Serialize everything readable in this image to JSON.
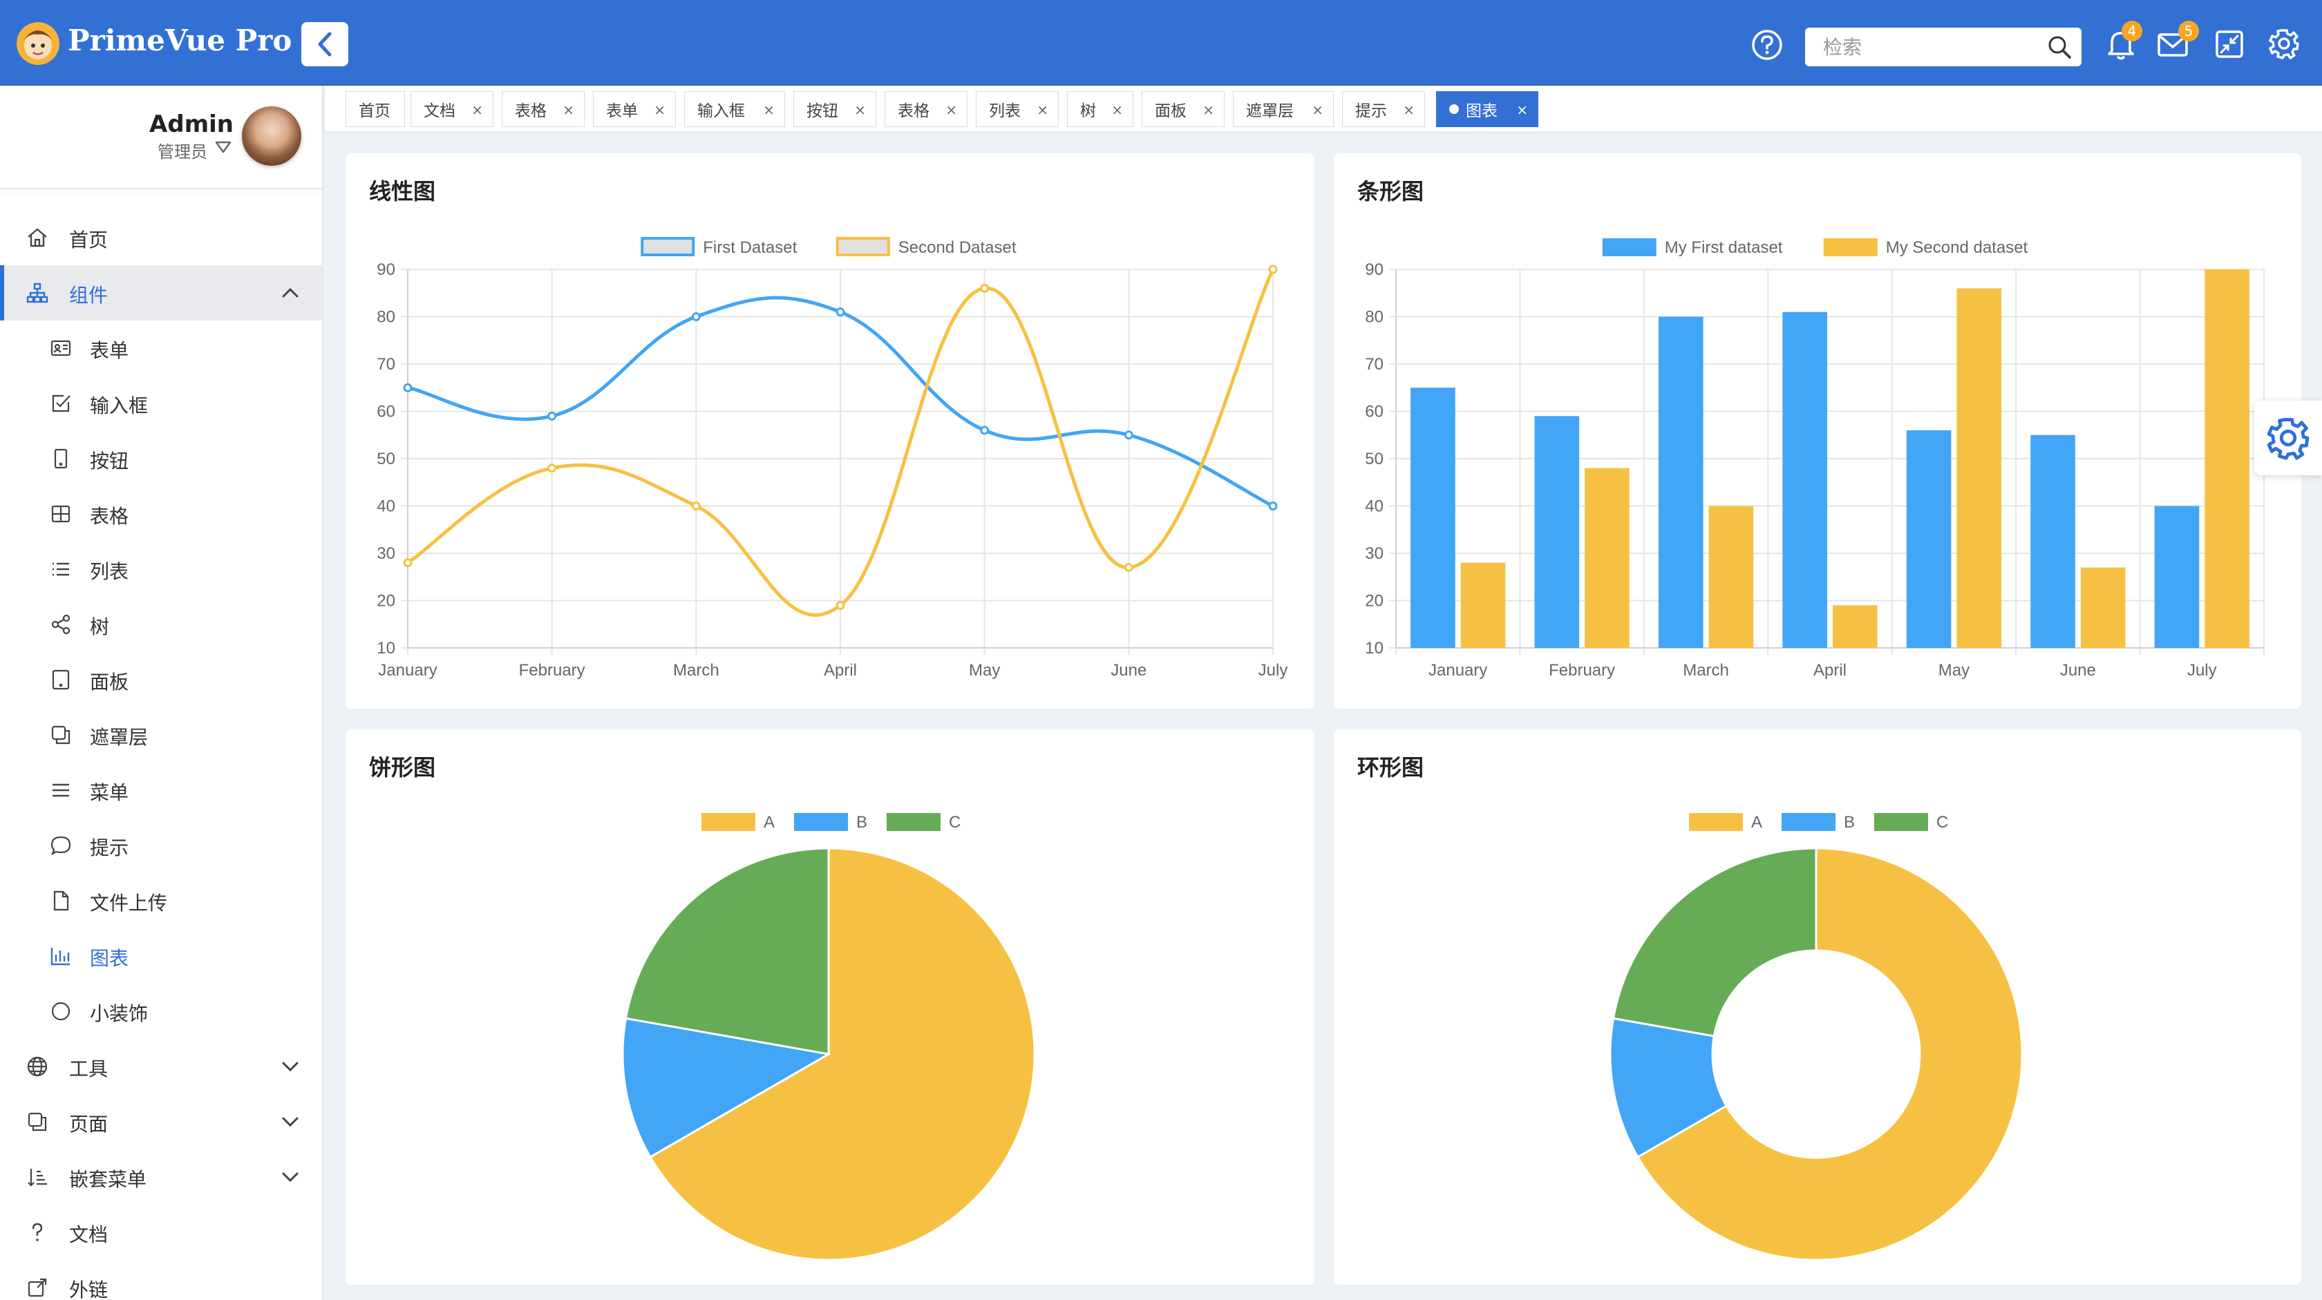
{
  "app": {
    "title": "PrimeVue Pro"
  },
  "header": {
    "search_placeholder": "检索",
    "notifications_count": "4",
    "messages_count": "5"
  },
  "user": {
    "name": "Admin",
    "role": "管理员"
  },
  "sidebar": {
    "items": [
      {
        "label": "首页",
        "icon": "home-icon",
        "level": 0
      },
      {
        "label": "组件",
        "icon": "sitemap-icon",
        "level": 0,
        "active": true,
        "expanded": true
      },
      {
        "label": "表单",
        "icon": "id-card-icon",
        "level": 1
      },
      {
        "label": "输入框",
        "icon": "check-square-icon",
        "level": 1
      },
      {
        "label": "按钮",
        "icon": "mobile-icon",
        "level": 1
      },
      {
        "label": "表格",
        "icon": "table-icon",
        "level": 1
      },
      {
        "label": "列表",
        "icon": "list-icon",
        "level": 1
      },
      {
        "label": "树",
        "icon": "share-alt-icon",
        "level": 1
      },
      {
        "label": "面板",
        "icon": "tablet-icon",
        "level": 1
      },
      {
        "label": "遮罩层",
        "icon": "clone-icon",
        "level": 1
      },
      {
        "label": "菜单",
        "icon": "bars-icon",
        "level": 1
      },
      {
        "label": "提示",
        "icon": "comment-icon",
        "level": 1
      },
      {
        "label": "文件上传",
        "icon": "file-icon",
        "level": 1
      },
      {
        "label": "图表",
        "icon": "chart-bar-icon",
        "level": 1,
        "current": true
      },
      {
        "label": "小装饰",
        "icon": "circle-icon",
        "level": 1
      },
      {
        "label": "工具",
        "icon": "globe-icon",
        "level": 0,
        "expandable": true
      },
      {
        "label": "页面",
        "icon": "copy-icon",
        "level": 0,
        "expandable": true
      },
      {
        "label": "嵌套菜单",
        "icon": "sort-amount-icon",
        "level": 0,
        "expandable": true
      },
      {
        "label": "文档",
        "icon": "question-icon",
        "level": 0
      },
      {
        "label": "外链",
        "icon": "external-link-icon",
        "level": 0
      }
    ]
  },
  "tabs": [
    {
      "label": "首页",
      "closable": false
    },
    {
      "label": "文档",
      "closable": true
    },
    {
      "label": "表格",
      "closable": true
    },
    {
      "label": "表单",
      "closable": true
    },
    {
      "label": "输入框",
      "closable": true
    },
    {
      "label": "按钮",
      "closable": true
    },
    {
      "label": "表格",
      "closable": true
    },
    {
      "label": "列表",
      "closable": true
    },
    {
      "label": "树",
      "closable": true
    },
    {
      "label": "面板",
      "closable": true
    },
    {
      "label": "遮罩层",
      "closable": true
    },
    {
      "label": "提示",
      "closable": true
    },
    {
      "label": "图表",
      "closable": true,
      "active": true
    }
  ],
  "tab_close_glyph": "×",
  "colors": {
    "primary": "#3370d4",
    "blue": "#42a5f5",
    "yellow": "#f6c142",
    "green": "#66ab55"
  },
  "chart_data": [
    {
      "title": "线性图",
      "type": "line",
      "categories": [
        "January",
        "February",
        "March",
        "April",
        "May",
        "June",
        "July"
      ],
      "series": [
        {
          "name": "First Dataset",
          "values": [
            65,
            59,
            80,
            81,
            56,
            55,
            40
          ]
        },
        {
          "name": "Second Dataset",
          "values": [
            28,
            48,
            40,
            19,
            86,
            27,
            90
          ]
        }
      ],
      "ylim": [
        10,
        90
      ],
      "yticks": [
        10,
        20,
        30,
        40,
        50,
        60,
        70,
        80,
        90
      ],
      "grid": true,
      "legend": "top"
    },
    {
      "title": "条形图",
      "type": "bar",
      "categories": [
        "January",
        "February",
        "March",
        "April",
        "May",
        "June",
        "July"
      ],
      "series": [
        {
          "name": "My First dataset",
          "values": [
            65,
            59,
            80,
            81,
            56,
            55,
            40
          ]
        },
        {
          "name": "My Second dataset",
          "values": [
            28,
            48,
            40,
            19,
            86,
            27,
            90
          ]
        }
      ],
      "ylim": [
        10,
        90
      ],
      "yticks": [
        10,
        20,
        30,
        40,
        50,
        60,
        70,
        80,
        90
      ],
      "grid": true,
      "legend": "top"
    },
    {
      "title": "饼形图",
      "type": "pie",
      "categories": [
        "A",
        "B",
        "C"
      ],
      "values": [
        300,
        50,
        100
      ],
      "legend": "top"
    },
    {
      "title": "环形图",
      "type": "doughnut",
      "categories": [
        "A",
        "B",
        "C"
      ],
      "values": [
        300,
        50,
        100
      ],
      "legend": "top"
    }
  ]
}
